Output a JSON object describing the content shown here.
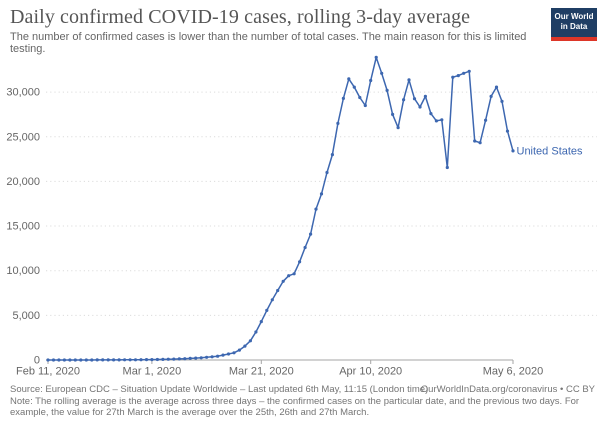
{
  "header": {
    "title": "Daily confirmed COVID-19 cases, rolling 3-day average",
    "subtitle": "The number of confirmed cases is lower than the number of total cases. The main reason for this is limited testing."
  },
  "logo": {
    "line1": "Our World",
    "line2": "in Data",
    "bg_color": "#1f3e64",
    "stripe_color": "#dd3628"
  },
  "chart_data": {
    "type": "line",
    "title": "Daily confirmed COVID-19 cases, rolling 3-day average",
    "x_axis": "date",
    "x_range": [
      "Feb 11, 2020",
      "May 6, 2020"
    ],
    "ylim": [
      0,
      34000
    ],
    "grid": "dotted horizontal",
    "legend_position": "end-of-line label",
    "line_color": "#3d67b0",
    "xticks": [
      {
        "label": "Feb 11, 2020",
        "day": 0
      },
      {
        "label": "Mar 1, 2020",
        "day": 19
      },
      {
        "label": "Mar 21, 2020",
        "day": 39
      },
      {
        "label": "Apr 10, 2020",
        "day": 59
      },
      {
        "label": "May 6, 2020",
        "day": 85
      }
    ],
    "yticks": [
      {
        "label": "0",
        "value": 0
      },
      {
        "label": "5,000",
        "value": 5000
      },
      {
        "label": "10,000",
        "value": 10000
      },
      {
        "label": "15,000",
        "value": 15000
      },
      {
        "label": "20,000",
        "value": 20000
      },
      {
        "label": "25,000",
        "value": 25000
      },
      {
        "label": "30,000",
        "value": 30000
      }
    ],
    "series": [
      {
        "name": "United States",
        "start_date": "Feb 11, 2020",
        "interval": "daily",
        "values": [
          1,
          1,
          1,
          2,
          2,
          3,
          3,
          4,
          5,
          6,
          8,
          10,
          12,
          15,
          18,
          22,
          27,
          33,
          40,
          48,
          58,
          70,
          85,
          100,
          120,
          145,
          175,
          210,
          250,
          300,
          360,
          430,
          550,
          670,
          810,
          1110,
          1560,
          2150,
          3140,
          4300,
          5550,
          6740,
          7780,
          8810,
          9440,
          9650,
          11000,
          12600,
          14100,
          16900,
          18600,
          21000,
          23000,
          26500,
          29300,
          31480,
          30560,
          29400,
          28500,
          31300,
          33890,
          32110,
          30190,
          27500,
          26030,
          29150,
          31370,
          29260,
          28330,
          29520,
          27590,
          26780,
          26900,
          21560,
          31670,
          31850,
          32110,
          32330,
          24520,
          24330,
          26850,
          29520,
          30560,
          28960,
          25630,
          23410
        ]
      }
    ],
    "end_label": "United States"
  },
  "footer": {
    "source": "Source: European CDC – Situation Update Worldwide – Last updated 6th May, 11:15 (London time)",
    "credit": "OurWorldInData.org/coronavirus • CC BY",
    "note": "Note: The rolling average is the average across three days – the confirmed cases on the particular date, and the previous two days. For example, the value for 27th March is the average over the 25th, 26th and 27th March."
  }
}
